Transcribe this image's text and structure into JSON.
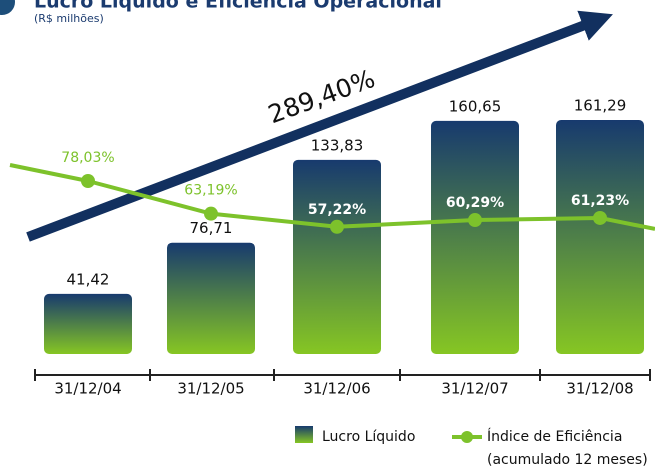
{
  "chart_data": {
    "type": "bar",
    "title": "Lucro Líquido e Eficiência Operacional",
    "subtitle": "(R$ milhões)",
    "annotation": "289,40%",
    "categories": [
      "31/12/04",
      "31/12/05",
      "31/12/06",
      "31/12/07",
      "31/12/08"
    ],
    "series": [
      {
        "name": "Lucro Líquido",
        "type": "bar",
        "colors": [
          "#173a6e",
          "#86c623"
        ],
        "values": [
          41.42,
          76.71,
          133.83,
          160.65,
          161.29
        ],
        "value_labels": [
          "41,42",
          "76,71",
          "133,83",
          "160,65",
          "161,29"
        ]
      },
      {
        "name": "Índice de Eficiência",
        "type": "line",
        "color": "#7dc22b",
        "values": [
          78.03,
          63.19,
          57.22,
          60.29,
          61.23
        ],
        "value_labels": [
          "78,03%",
          "63,19%",
          "57,22%",
          "60,29%",
          "61,23%"
        ]
      }
    ],
    "legend_note": "(acumulado 12 meses)"
  }
}
